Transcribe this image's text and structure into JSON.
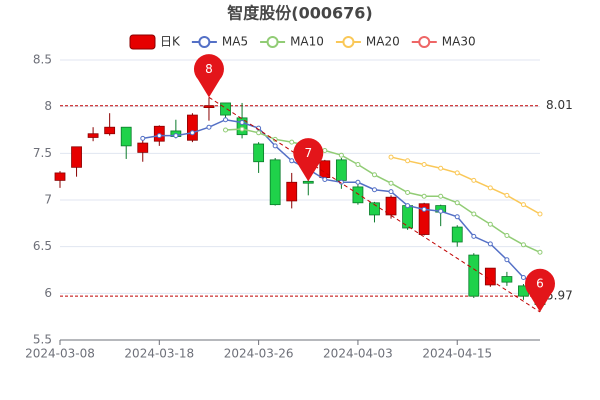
{
  "chart_data": {
    "type": "candlestick",
    "title": "智度股份(000676)",
    "categories": [
      "2024-03-08",
      null,
      null,
      null,
      null,
      null,
      "2024-03-18",
      null,
      null,
      null,
      null,
      null,
      "2024-03-26",
      null,
      null,
      null,
      null,
      null,
      "2024-04-03",
      null,
      null,
      null,
      null,
      null,
      "2024-04-15",
      null,
      null,
      null,
      null,
      null
    ],
    "series": [
      {
        "name": "日K",
        "kind": "candle",
        "up_color": "#e60000",
        "down_color": "#1fd24a",
        "open": [
          7.21,
          7.35,
          7.67,
          7.71,
          7.78,
          7.51,
          7.63,
          7.74,
          7.64,
          7.99,
          8.04,
          7.88,
          7.6,
          7.43,
          6.99,
          7.2,
          7.24,
          7.43,
          7.14,
          6.97,
          6.84,
          6.94,
          6.63,
          6.94,
          6.71,
          6.41,
          6.09,
          6.18,
          6.08,
          6.0
        ],
        "close": [
          7.29,
          7.57,
          7.71,
          7.78,
          7.58,
          7.61,
          7.79,
          7.68,
          7.91,
          8.01,
          7.91,
          7.7,
          7.41,
          6.95,
          7.19,
          7.18,
          7.42,
          7.21,
          6.97,
          6.84,
          7.03,
          6.7,
          6.96,
          6.87,
          6.55,
          5.97,
          6.27,
          6.12,
          5.97,
          5.88
        ],
        "low": [
          7.13,
          7.25,
          7.63,
          7.69,
          7.44,
          7.41,
          7.58,
          7.66,
          7.62,
          7.85,
          7.84,
          7.66,
          7.29,
          6.94,
          6.91,
          7.05,
          7.2,
          7.12,
          6.95,
          6.76,
          6.8,
          6.68,
          6.62,
          6.72,
          6.5,
          5.95,
          6.07,
          6.08,
          5.93,
          5.8
        ],
        "high": [
          7.31,
          7.57,
          7.78,
          7.93,
          7.78,
          7.65,
          7.8,
          7.86,
          7.93,
          8.1,
          8.04,
          8.04,
          7.62,
          7.45,
          7.29,
          7.27,
          7.43,
          7.45,
          7.18,
          6.98,
          7.05,
          6.96,
          6.97,
          6.95,
          6.73,
          6.43,
          6.27,
          6.23,
          6.1,
          6.02
        ]
      },
      {
        "name": "MA5",
        "kind": "line",
        "color": "#5470c6",
        "values": [
          null,
          null,
          null,
          null,
          null,
          7.66,
          7.69,
          7.69,
          7.72,
          7.78,
          7.86,
          7.83,
          7.77,
          7.58,
          7.42,
          7.33,
          7.22,
          7.19,
          7.19,
          7.11,
          7.09,
          6.94,
          6.9,
          6.88,
          6.82,
          6.61,
          6.53,
          6.36,
          6.17,
          6.08
        ]
      },
      {
        "name": "MA10",
        "kind": "line",
        "color": "#91cc75",
        "values": [
          null,
          null,
          null,
          null,
          null,
          null,
          null,
          null,
          null,
          null,
          7.75,
          7.76,
          7.72,
          7.65,
          7.62,
          7.58,
          7.53,
          7.48,
          7.38,
          7.27,
          7.18,
          7.08,
          7.04,
          7.04,
          6.97,
          6.85,
          6.74,
          6.62,
          6.52,
          6.44
        ]
      },
      {
        "name": "MA20",
        "kind": "line",
        "color": "#fac858",
        "values": [
          null,
          null,
          null,
          null,
          null,
          null,
          null,
          null,
          null,
          null,
          null,
          null,
          null,
          null,
          null,
          null,
          null,
          null,
          null,
          null,
          7.46,
          7.42,
          7.38,
          7.34,
          7.29,
          7.21,
          7.13,
          7.05,
          6.95,
          6.85
        ]
      },
      {
        "name": "MA30",
        "kind": "line",
        "color": "#ee6666",
        "values": [
          null,
          null,
          null,
          null,
          null,
          null,
          null,
          null,
          null,
          null,
          null,
          null,
          null,
          null,
          null,
          null,
          null,
          null,
          null,
          null,
          null,
          null,
          null,
          null,
          null,
          null,
          null,
          null,
          null,
          null
        ]
      }
    ],
    "ylim": [
      5.5,
      8.5
    ],
    "yticks": [
      5.5,
      6,
      6.5,
      7,
      7.5,
      8,
      8.5
    ],
    "grid": true,
    "reference_lines": [
      8.01,
      5.97
    ],
    "reference_color": "#c00000",
    "markers": [
      {
        "label": "8",
        "index": 9,
        "value": 8.1
      },
      {
        "label": "7",
        "index": 15,
        "value": 7.2
      },
      {
        "label": "6",
        "index": 29,
        "value": 5.8
      }
    ],
    "marker_color": "#e3151a"
  }
}
